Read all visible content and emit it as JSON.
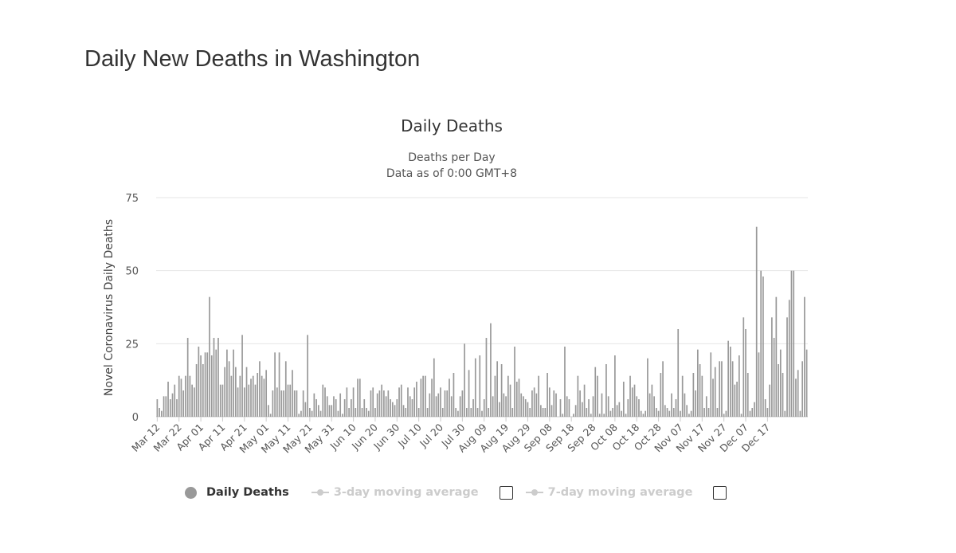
{
  "page": {
    "heading": "Daily New Deaths in Washington"
  },
  "chart_data": {
    "type": "bar",
    "title": "Daily Deaths",
    "subtitle_lines": [
      "Deaths per Day",
      "Data as of 0:00 GMT+8"
    ],
    "ylabel": "Novel Coronavirus Daily Deaths",
    "xlabel": "",
    "ylim": [
      0,
      75
    ],
    "yticks": [
      0,
      25,
      50,
      75
    ],
    "grid": true,
    "bar_color": "#999999",
    "start_date": "Mar 12",
    "xtick_labels": [
      "Mar 12",
      "Mar 22",
      "Apr 01",
      "Apr 11",
      "Apr 21",
      "May 01",
      "May 11",
      "May 21",
      "May 31",
      "Jun 10",
      "Jun 20",
      "Jun 30",
      "Jul 10",
      "Jul 20",
      "Jul 30",
      "Aug 09",
      "Aug 19",
      "Aug 29",
      "Sep 08",
      "Sep 18",
      "Sep 28",
      "Oct 08",
      "Oct 18",
      "Oct 28",
      "Nov 07",
      "Nov 17",
      "Nov 27",
      "Dec 07",
      "Dec 17"
    ],
    "xtick_interval_days": 10,
    "series": [
      {
        "name": "Daily Deaths",
        "values": [
          6,
          3,
          2,
          7,
          7,
          12,
          6,
          8,
          11,
          6,
          14,
          13,
          9,
          14,
          27,
          14,
          11,
          10,
          18,
          24,
          21,
          18,
          22,
          22,
          41,
          21,
          27,
          23,
          27,
          11,
          11,
          17,
          23,
          19,
          14,
          23,
          17,
          10,
          14,
          28,
          10,
          17,
          11,
          13,
          14,
          11,
          15,
          19,
          14,
          13,
          16,
          4,
          1,
          9,
          22,
          10,
          22,
          9,
          9,
          19,
          11,
          11,
          16,
          9,
          9,
          1,
          2,
          9,
          5,
          28,
          3,
          2,
          8,
          6,
          4,
          2,
          11,
          10,
          7,
          4,
          4,
          7,
          6,
          2,
          8,
          1,
          6,
          10,
          3,
          6,
          10,
          3,
          13,
          13,
          3,
          6,
          3,
          2,
          9,
          10,
          3,
          8,
          9,
          11,
          9,
          7,
          9,
          6,
          5,
          4,
          6,
          10,
          11,
          4,
          3,
          10,
          7,
          6,
          10,
          12,
          3,
          13,
          14,
          14,
          3,
          8,
          13,
          20,
          7,
          8,
          10,
          3,
          9,
          9,
          13,
          7,
          15,
          3,
          2,
          7,
          9,
          25,
          3,
          16,
          3,
          6,
          20,
          3,
          21,
          2,
          6,
          27,
          3,
          32,
          7,
          14,
          19,
          5,
          18,
          8,
          7,
          14,
          11,
          3,
          24,
          12,
          13,
          8,
          7,
          6,
          5,
          3,
          9,
          10,
          8,
          14,
          4,
          3,
          3,
          15,
          10,
          4,
          9,
          8,
          0,
          6,
          1,
          24,
          7,
          6,
          0,
          1,
          4,
          14,
          9,
          5,
          11,
          3,
          6,
          1,
          7,
          17,
          14,
          1,
          8,
          1,
          18,
          7,
          2,
          3,
          21,
          4,
          5,
          2,
          12,
          1,
          6,
          14,
          10,
          11,
          7,
          6,
          2,
          1,
          2,
          20,
          8,
          11,
          7,
          3,
          2,
          15,
          19,
          4,
          3,
          2,
          8,
          3,
          6,
          30,
          2,
          14,
          8,
          4,
          1,
          2,
          15,
          9,
          23,
          18,
          14,
          3,
          7,
          3,
          22,
          13,
          17,
          3,
          19,
          19,
          1,
          2,
          26,
          24,
          19,
          11,
          12,
          21,
          1,
          34,
          30,
          15,
          2,
          3,
          5,
          65,
          22,
          50,
          48,
          6,
          3,
          11,
          34,
          27,
          41,
          18,
          23,
          15,
          2,
          34,
          40,
          50,
          50,
          13,
          16,
          2,
          19,
          41,
          23
        ]
      }
    ],
    "legend": [
      {
        "label": "Daily Deaths",
        "active": true,
        "color": "#999999",
        "icon": "filled-circle-icon"
      },
      {
        "label": "3-day moving average",
        "active": false,
        "color": "#cccccc",
        "icon": "line-marker-icon"
      },
      {
        "label": "7-day moving average",
        "active": false,
        "color": "#cccccc",
        "icon": "line-marker-icon"
      }
    ],
    "gridline_color": "#e6e6e6"
  }
}
